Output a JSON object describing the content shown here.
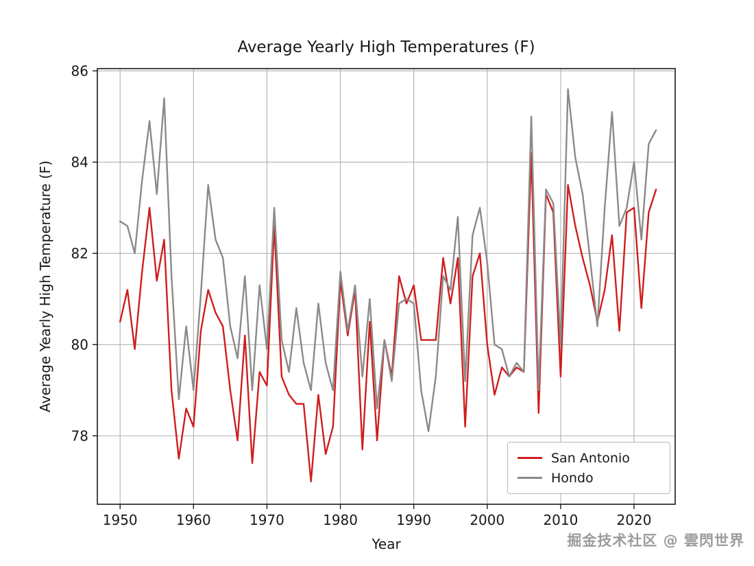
{
  "watermark": {
    "text": "掘金技术社区 @ 雲閃世界"
  },
  "chart_data": {
    "type": "line",
    "title": "Average Yearly High Temperatures (F)",
    "xlabel": "Year",
    "ylabel": "Average Yearly High Temperature (F)",
    "x_start_year": 1950,
    "xlim": [
      1946.9,
      2025.6
    ],
    "ylim": [
      76.5,
      86.05
    ],
    "xticks": [
      1950,
      1960,
      1970,
      1980,
      1990,
      2000,
      2010,
      2020
    ],
    "yticks": [
      78,
      80,
      82,
      84,
      86
    ],
    "grid": true,
    "legend_position": "lower right",
    "series": [
      {
        "name": "San Antonio",
        "color": "#cf1d1d",
        "values": [
          80.5,
          81.2,
          79.9,
          81.6,
          83.0,
          81.4,
          82.3,
          79.0,
          77.5,
          78.6,
          78.2,
          80.3,
          81.2,
          80.7,
          80.4,
          79.0,
          77.9,
          80.2,
          77.4,
          79.4,
          79.1,
          82.6,
          79.3,
          78.9,
          78.7,
          78.7,
          77.0,
          78.9,
          77.6,
          78.2,
          81.4,
          80.2,
          81.2,
          77.7,
          80.5,
          77.9,
          80.1,
          79.3,
          81.5,
          80.9,
          81.3,
          80.1,
          80.1,
          80.1,
          81.9,
          80.9,
          81.9,
          78.2,
          81.5,
          82.0,
          80.0,
          78.9,
          79.5,
          79.3,
          79.5,
          79.4,
          84.2,
          78.5,
          83.3,
          82.9,
          79.3,
          83.5,
          82.6,
          81.9,
          81.3,
          80.5,
          81.2,
          82.4,
          80.3,
          82.9,
          83.0,
          80.8,
          82.9,
          83.4
        ]
      },
      {
        "name": "Hondo",
        "color": "#8a8a8a",
        "values": [
          82.7,
          82.6,
          82.0,
          83.6,
          84.9,
          83.3,
          85.4,
          81.5,
          78.8,
          80.4,
          79.0,
          81.1,
          83.5,
          82.3,
          81.9,
          80.4,
          79.7,
          81.5,
          79.0,
          81.3,
          79.9,
          83.0,
          80.1,
          79.4,
          80.8,
          79.6,
          79.0,
          80.9,
          79.6,
          79.0,
          81.6,
          80.3,
          81.3,
          79.3,
          81.0,
          78.6,
          80.1,
          79.2,
          80.9,
          81.0,
          80.9,
          79.0,
          78.1,
          79.3,
          81.5,
          81.2,
          82.8,
          79.2,
          82.4,
          83.0,
          81.8,
          80.0,
          79.9,
          79.3,
          79.6,
          79.4,
          85.0,
          79.0,
          83.4,
          83.1,
          80.0,
          85.6,
          84.1,
          83.3,
          81.9,
          80.4,
          83.0,
          85.1,
          82.6,
          83.0,
          84.0,
          82.3,
          84.4,
          84.7
        ]
      }
    ]
  }
}
